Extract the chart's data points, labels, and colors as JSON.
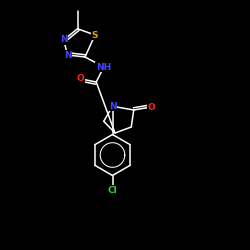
{
  "bg_color": "#000000",
  "atom_colors": {
    "N": "#4444ff",
    "O": "#ff2222",
    "S": "#ccaa00",
    "Cl": "#33cc33",
    "C": "#ffffff",
    "H": "#ffffff"
  },
  "bond_color": "#ffffff",
  "font_size_atom": 6.5,
  "lw": 1.1
}
